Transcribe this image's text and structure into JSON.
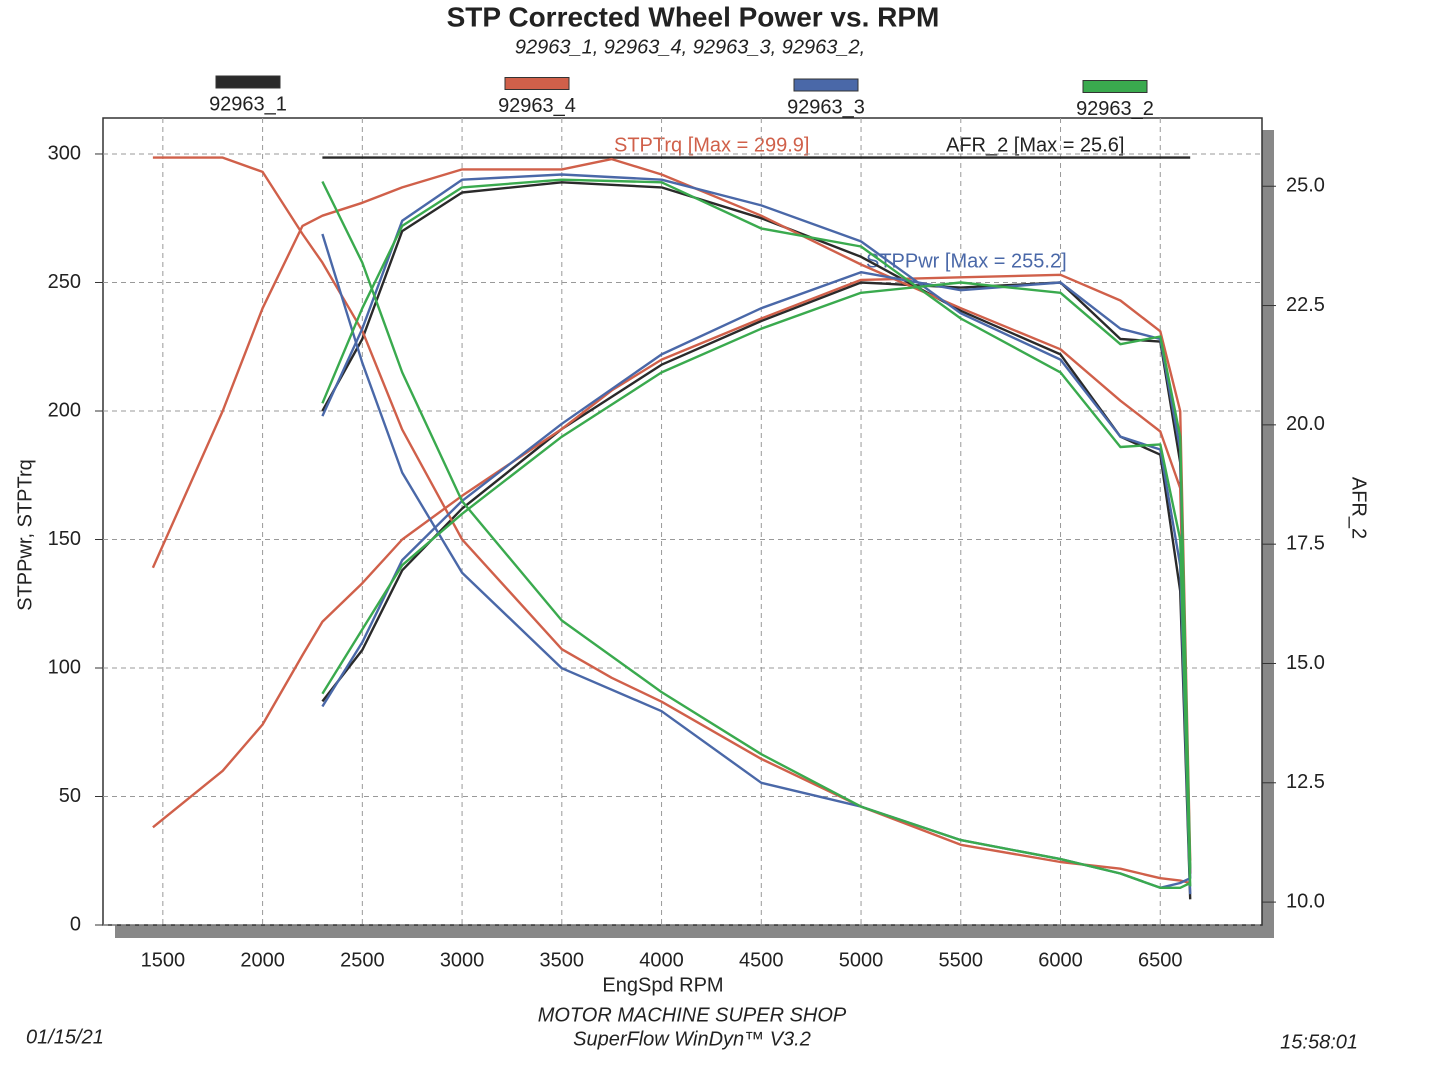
{
  "chart_data": {
    "type": "line",
    "title": "STP Corrected Wheel Power vs. RPM",
    "subtitle": "92963_1, 92963_4, 92963_3, 92963_2,",
    "xlabel": "EngSpd RPM",
    "ylabel": "STPPwr, STPTrq",
    "y2label": "AFR_2",
    "annotations": [
      "STPTrq [Max = 299.9]",
      "STPPwr [Max = 255.2]",
      "AFR_2  [Max = 25.6]"
    ],
    "footer": {
      "date": "01/15/21",
      "shop": "MOTOR MACHINE SUPER SHOP",
      "software": "SuperFlow WinDyn™ V3.2",
      "time": "15:58:01"
    },
    "xlim": [
      1200,
      7010
    ],
    "ylim": [
      0,
      314
    ],
    "y2lim": [
      9.52,
      26.43
    ],
    "xticks": [
      1500,
      2000,
      2500,
      3000,
      3500,
      4000,
      4500,
      5000,
      5500,
      6000,
      6500
    ],
    "yticks": [
      0,
      50,
      100,
      150,
      200,
      250,
      300
    ],
    "y2ticks": [
      {
        "value": 10,
        "label": "10.0"
      },
      12.5,
      {
        "value": 15,
        "label": "15.0"
      },
      17.5,
      {
        "value": 20,
        "label": "20.0"
      },
      22.5,
      {
        "value": 25,
        "label": "25.0"
      }
    ],
    "grid": true,
    "series": [
      {
        "name": "92963_1",
        "color": "#2a2a2a",
        "x": [
          2300,
          2500,
          2700,
          3000,
          3500,
          4000,
          4500,
          5000,
          5500,
          6000,
          6300,
          6500,
          6600,
          6650
        ],
        "power": [
          87,
          107,
          138,
          162,
          193,
          218,
          235,
          250,
          248,
          250,
          228,
          227,
          180,
          20
        ],
        "torque": [
          200,
          228,
          270,
          285,
          289,
          287,
          275,
          260,
          239,
          222,
          190,
          183,
          130,
          10
        ],
        "afr": [
          25.6,
          25.6,
          25.6,
          25.6,
          25.6,
          25.6,
          25.6,
          25.6,
          25.6,
          25.6,
          25.6,
          25.6,
          25.6,
          25.6
        ]
      },
      {
        "name": "92963_4",
        "color": "#d0604a",
        "x": [
          1450,
          1800,
          2000,
          2200,
          2300,
          2500,
          2700,
          3000,
          3500,
          3750,
          4000,
          4500,
          5000,
          5500,
          6000,
          6300,
          6500,
          6600,
          6650
        ],
        "power": [
          38,
          60,
          78,
          105,
          118,
          133,
          150,
          167,
          193,
          208,
          220,
          236,
          251,
          252,
          253,
          243,
          231,
          200,
          25
        ],
        "torque": [
          139,
          200,
          240,
          272,
          276,
          281,
          287,
          294,
          294,
          298,
          292,
          276,
          257,
          240,
          224,
          204,
          192,
          170,
          20
        ],
        "afr": [
          25.6,
          25.6,
          25.3,
          24.0,
          23.4,
          21.97,
          19.9,
          17.6,
          15.3,
          14.7,
          14.2,
          13.0,
          12.0,
          11.2,
          10.84,
          10.7,
          10.5,
          10.45,
          10.4
        ]
      },
      {
        "name": "92963_3",
        "color": "#4a68a8",
        "x": [
          2300,
          2500,
          2700,
          3000,
          3500,
          4000,
          4500,
          5000,
          5500,
          6000,
          6300,
          6500,
          6600,
          6650
        ],
        "power": [
          85,
          110,
          142,
          165,
          195,
          222,
          240,
          254,
          247,
          250,
          232,
          228,
          185,
          18
        ],
        "torque": [
          198,
          232,
          274,
          290,
          292,
          290,
          280,
          266,
          238,
          220,
          190,
          185,
          140,
          12
        ],
        "afr": [
          24.0,
          21.3,
          19.0,
          16.9,
          14.9,
          14.0,
          12.5,
          12.0,
          11.3,
          10.9,
          10.6,
          10.3,
          10.4,
          10.5
        ]
      },
      {
        "name": "92963_2",
        "color": "#3aaa4e",
        "x": [
          2300,
          2500,
          2700,
          3000,
          3500,
          4000,
          4500,
          5000,
          5500,
          6000,
          6300,
          6500,
          6600,
          6650
        ],
        "power": [
          90,
          115,
          140,
          160,
          190,
          215,
          232,
          246,
          250,
          246,
          226,
          229,
          190,
          22
        ],
        "torque": [
          203,
          240,
          272,
          287,
          290,
          289,
          271,
          264,
          236,
          215,
          186,
          187,
          150,
          15
        ],
        "afr": [
          25.1,
          23.4,
          21.1,
          18.4,
          15.9,
          14.4,
          13.1,
          12.0,
          11.3,
          10.9,
          10.6,
          10.3,
          10.3,
          10.4
        ]
      }
    ]
  }
}
